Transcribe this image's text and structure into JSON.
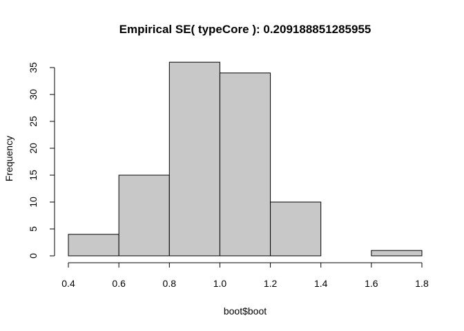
{
  "chart_data": {
    "type": "bar",
    "subtype": "histogram",
    "title": "Empirical SE( typeCore ):  0.209188851285955",
    "xlabel": "boot$boot",
    "ylabel": "Frequency",
    "bins": [
      {
        "start": 0.4,
        "end": 0.6,
        "count": 4
      },
      {
        "start": 0.6,
        "end": 0.8,
        "count": 15
      },
      {
        "start": 0.8,
        "end": 1.0,
        "count": 36
      },
      {
        "start": 1.0,
        "end": 1.2,
        "count": 34
      },
      {
        "start": 1.2,
        "end": 1.4,
        "count": 10
      },
      {
        "start": 1.4,
        "end": 1.6,
        "count": 0
      },
      {
        "start": 1.6,
        "end": 1.8,
        "count": 1
      }
    ],
    "xlim": [
      0.4,
      1.8
    ],
    "ylim": [
      0,
      36
    ],
    "x_ticks": [
      "0.4",
      "0.6",
      "0.8",
      "1.0",
      "1.2",
      "1.4",
      "1.6",
      "1.8"
    ],
    "y_ticks": [
      "0",
      "5",
      "10",
      "15",
      "20",
      "25",
      "30",
      "35"
    ],
    "bar_color": "#c8c8c8",
    "grid": false,
    "legend": "none"
  }
}
